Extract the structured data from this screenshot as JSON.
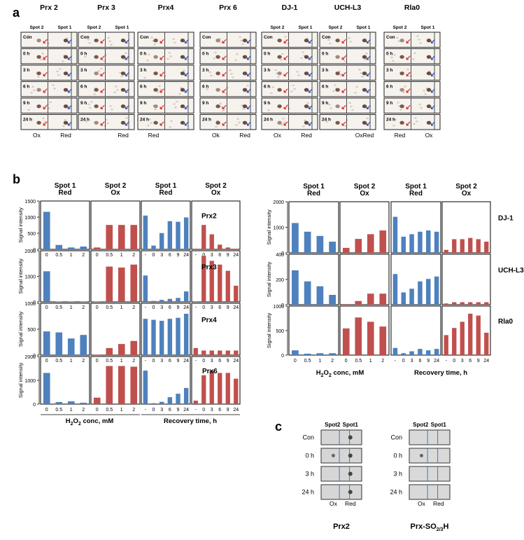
{
  "panel_labels": {
    "a": "a",
    "b": "b",
    "c": "c"
  },
  "panel_a": {
    "row_labels": [
      "Con",
      "0 h",
      "3 h",
      "6 h",
      "9 h",
      "24 h"
    ],
    "proteins": [
      {
        "name": "Prx 2",
        "spot_left": "Spot 2",
        "spot_right": "Spot 1",
        "bottom_left": "Ox",
        "bottom_right": "Red"
      },
      {
        "name": "Prx 3",
        "spot_left": "Spot 2",
        "spot_right": "Spot 1",
        "bottom_left": "",
        "bottom_right": "Red"
      },
      {
        "name": "Prx4",
        "spot_left": "",
        "spot_right": "",
        "bottom_left": "Red",
        "bottom_right": ""
      },
      {
        "name": "Prx 6",
        "spot_left": "",
        "spot_right": "",
        "bottom_left": "Ok",
        "bottom_right": "Red"
      },
      {
        "name": "DJ-1",
        "spot_left": "Spot 2",
        "spot_right": "Spot 1",
        "bottom_left": "Ox",
        "bottom_right": "Red"
      },
      {
        "name": "UCH-L3",
        "spot_left": "Spot 2",
        "spot_right": "Spot 1",
        "bottom_left": "",
        "bottom_right": "OxRed"
      },
      {
        "name": "Rla0",
        "spot_left": "Spot 2",
        "spot_right": "Spot 1",
        "bottom_left": "Red",
        "bottom_right": "Ox"
      }
    ]
  },
  "panel_b_headers": {
    "spot1": "Spot 1",
    "spot2": "Spot 2",
    "red": "Red",
    "ox": "Ox",
    "ylabel": "Signal intensity",
    "conc_xlabel_pre": "H",
    "conc_xlabel_sub1": "2",
    "conc_xlabel_mid": "O",
    "conc_xlabel_sub2": "2",
    "conc_xlabel_post": " conc, mM",
    "time_xlabel": "Recovery time, h"
  },
  "chart_data": [
    {
      "type": "bar",
      "protein": "Prx2",
      "ylim": [
        0,
        1500
      ],
      "yticks": [
        "0",
        "500",
        "1000",
        "1500"
      ],
      "series": [
        {
          "name": "Spot 1 Red",
          "categories": [
            "0",
            "0.5",
            "1",
            "2"
          ],
          "values": [
            1200,
            140,
            60,
            90
          ],
          "color": "#4e81bd"
        },
        {
          "name": "Spot 2 Ox",
          "categories": [
            "0",
            "0.5",
            "1",
            "2"
          ],
          "values": [
            60,
            780,
            780,
            780
          ],
          "color": "#c0504d"
        },
        {
          "name": "Spot 1 Red",
          "categories": [
            "-",
            "0",
            "3",
            "6",
            "9",
            "24"
          ],
          "values": [
            1080,
            120,
            520,
            900,
            880,
            1020
          ],
          "color": "#4e81bd"
        },
        {
          "name": "Spot 2 Ox",
          "categories": [
            "-",
            "0",
            "3",
            "6",
            "9",
            "24"
          ],
          "values": [
            20,
            780,
            480,
            150,
            60,
            20
          ],
          "color": "#c0504d"
        }
      ]
    },
    {
      "type": "bar",
      "protein": "Prx3",
      "ylim": [
        0,
        2000
      ],
      "yticks": [
        "0",
        "1000",
        "2000"
      ],
      "series": [
        {
          "name": "Spot 1 Red",
          "categories": [
            "0",
            "0.5",
            "1",
            "2"
          ],
          "values": [
            1230,
            15,
            10,
            10
          ],
          "color": "#4e81bd"
        },
        {
          "name": "Spot 2 Ox",
          "categories": [
            "0",
            "0.5",
            "1",
            "2"
          ],
          "values": [
            10,
            1420,
            1380,
            1500
          ],
          "color": "#c0504d"
        },
        {
          "name": "Spot 1 Red",
          "categories": [
            "-",
            "0",
            "3",
            "6",
            "9",
            "24"
          ],
          "values": [
            1060,
            40,
            80,
            120,
            160,
            420
          ],
          "color": "#4e81bd"
        },
        {
          "name": "Spot 2 Ox",
          "categories": [
            "-",
            "0",
            "3",
            "6",
            "9",
            "24"
          ],
          "values": [
            20,
            1850,
            1650,
            1500,
            1250,
            650
          ],
          "color": "#c0504d"
        }
      ]
    },
    {
      "type": "bar",
      "protein": "Prx4",
      "ylim": [
        0,
        1000
      ],
      "yticks": [
        "0",
        "500",
        "1000"
      ],
      "series": [
        {
          "name": "Spot 1 Red",
          "categories": [
            "0",
            "0.5",
            "1",
            "2"
          ],
          "values": [
            470,
            450,
            330,
            400
          ],
          "color": "#4e81bd"
        },
        {
          "name": "Spot 2 Ox",
          "categories": [
            "0",
            "0.5",
            "1",
            "2"
          ],
          "values": [
            10,
            140,
            220,
            280
          ],
          "color": "#c0504d"
        },
        {
          "name": "Spot 1 Red",
          "categories": [
            "-",
            "0",
            "3",
            "6",
            "9",
            "24"
          ],
          "values": [
            720,
            700,
            680,
            720,
            740,
            820
          ],
          "color": "#4e81bd"
        },
        {
          "name": "Spot 2 Ox",
          "categories": [
            "-",
            "0",
            "3",
            "6",
            "9",
            "24"
          ],
          "values": [
            140,
            90,
            90,
            90,
            90,
            90
          ],
          "color": "#c0504d"
        }
      ]
    },
    {
      "type": "bar",
      "protein": "Prx6",
      "ylim": [
        0,
        2000
      ],
      "yticks": [
        "0",
        "1000",
        "2000"
      ],
      "series": [
        {
          "name": "Spot 1 Red",
          "categories": [
            "0",
            "0.5",
            "1",
            "2"
          ],
          "values": [
            1350,
            90,
            120,
            60
          ],
          "color": "#4e81bd"
        },
        {
          "name": "Spot 2 Ox",
          "categories": [
            "0",
            "0.5",
            "1",
            "2"
          ],
          "values": [
            280,
            1650,
            1650,
            1620
          ],
          "color": "#c0504d"
        },
        {
          "name": "Spot 1 Red",
          "categories": [
            "-",
            "0",
            "3",
            "6",
            "9",
            "24"
          ],
          "values": [
            1450,
            40,
            100,
            300,
            450,
            700
          ],
          "color": "#4e81bd"
        },
        {
          "name": "Spot 2 Ox",
          "categories": [
            "-",
            "0",
            "3",
            "6",
            "9",
            "24"
          ],
          "values": [
            150,
            1250,
            1450,
            1350,
            1350,
            1100
          ],
          "color": "#c0504d"
        }
      ]
    },
    {
      "type": "bar",
      "protein": "DJ-1",
      "ylim": [
        0,
        2000
      ],
      "yticks": [
        "0",
        "1000",
        "2000"
      ],
      "series": [
        {
          "name": "Spot 1 Red",
          "categories": [
            "0",
            "0.5",
            "1",
            "2"
          ],
          "values": [
            1200,
            850,
            680,
            450
          ],
          "color": "#4e81bd"
        },
        {
          "name": "Spot 2 Ox",
          "categories": [
            "0",
            "0.5",
            "1",
            "2"
          ],
          "values": [
            200,
            560,
            750,
            900
          ],
          "color": "#c0504d"
        },
        {
          "name": "Spot 1 Red",
          "categories": [
            "-",
            "0",
            "3",
            "6",
            "9",
            "24"
          ],
          "values": [
            1450,
            650,
            750,
            850,
            900,
            850
          ],
          "color": "#4e81bd"
        },
        {
          "name": "Spot 2 Ox",
          "categories": [
            "-",
            "0",
            "3",
            "6",
            "9",
            "24"
          ],
          "values": [
            120,
            550,
            550,
            600,
            550,
            450
          ],
          "color": "#c0504d"
        }
      ]
    },
    {
      "type": "bar",
      "protein": "UCH-L3",
      "ylim": [
        0,
        400
      ],
      "yticks": [
        "0",
        "200",
        "400"
      ],
      "series": [
        {
          "name": "Spot 1 Red",
          "categories": [
            "0",
            "0.5",
            "1",
            "2"
          ],
          "values": [
            280,
            190,
            150,
            80
          ],
          "color": "#4e81bd"
        },
        {
          "name": "Spot 2 Ox",
          "categories": [
            "0",
            "0.5",
            "1",
            "2"
          ],
          "values": [
            5,
            30,
            90,
            90
          ],
          "color": "#c0504d"
        },
        {
          "name": "Spot 1 Red",
          "categories": [
            "-",
            "0",
            "3",
            "6",
            "9",
            "24"
          ],
          "values": [
            250,
            100,
            130,
            190,
            210,
            230
          ],
          "color": "#4e81bd"
        },
        {
          "name": "Spot 2 Ox",
          "categories": [
            "-",
            "0",
            "3",
            "6",
            "9",
            "24"
          ],
          "values": [
            10,
            20,
            20,
            20,
            20,
            20
          ],
          "color": "#c0504d"
        }
      ]
    },
    {
      "type": "bar",
      "protein": "Rla0",
      "ylim": [
        0,
        1000
      ],
      "yticks": [
        "0",
        "500",
        "1000"
      ],
      "series": [
        {
          "name": "Spot 1 Red",
          "categories": [
            "0",
            "0.5",
            "1",
            "2"
          ],
          "values": [
            100,
            30,
            40,
            40
          ],
          "color": "#4e81bd"
        },
        {
          "name": "Spot 2 Ox",
          "categories": [
            "0",
            "0.5",
            "1",
            "2"
          ],
          "values": [
            560,
            790,
            700,
            600
          ],
          "color": "#c0504d"
        },
        {
          "name": "Spot 1 Red",
          "categories": [
            "-",
            "0",
            "3",
            "6",
            "9",
            "24"
          ],
          "values": [
            150,
            40,
            80,
            130,
            100,
            130
          ],
          "color": "#4e81bd"
        },
        {
          "name": "Spot 2 Ox",
          "categories": [
            "-",
            "0",
            "3",
            "6",
            "9",
            "24"
          ],
          "values": [
            420,
            570,
            700,
            870,
            830,
            470
          ],
          "color": "#c0504d"
        }
      ]
    }
  ],
  "panel_c": {
    "blots": [
      {
        "title": "Prx2",
        "spot_left": "Spot2",
        "spot_right": "Spot1",
        "bottom_left": "Ox",
        "bottom_right": "Red"
      },
      {
        "title_pre": "Prx-SO",
        "title_sub": "2/3",
        "title_post": "H",
        "spot_left": "Spot2",
        "spot_right": "Spot1",
        "bottom_left": "Ox",
        "bottom_right": "Red"
      }
    ],
    "row_labels": [
      "Con",
      "0 h",
      "3 h",
      "24 h"
    ]
  }
}
